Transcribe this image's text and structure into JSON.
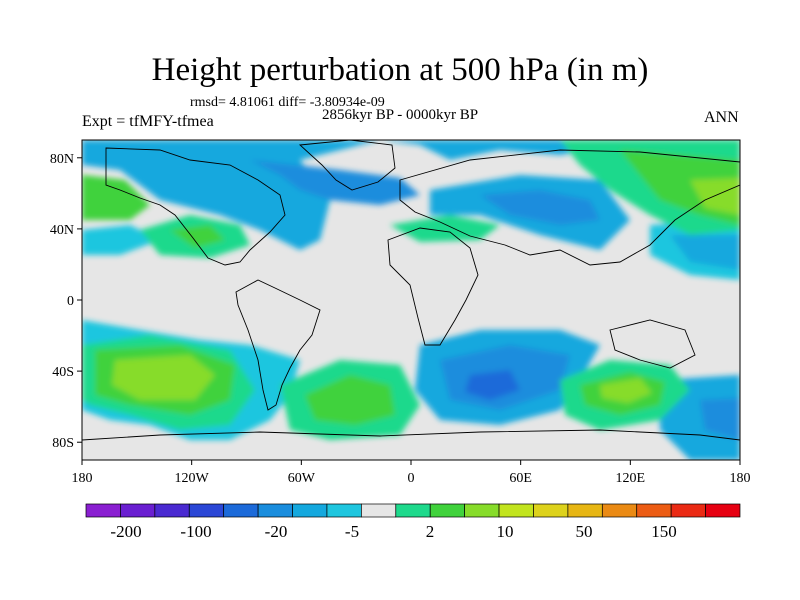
{
  "header": {
    "title": "Height perturbation at 500 hPa (in m)",
    "stats": "rmsd= 4.81061 diff= -3.80934e-09",
    "period": "2856kyr BP - 0000kyr BP",
    "experiment": "Expt = tfMFY-tfmea",
    "season": "ANN"
  },
  "map": {
    "projection": "cylindrical equidistant",
    "lon_range": [
      -180,
      180
    ],
    "lat_range": [
      -90,
      90
    ],
    "x_ticks": [
      "180",
      "120W",
      "60W",
      "0",
      "60E",
      "120E",
      "180"
    ],
    "y_ticks": [
      "80N",
      "40N",
      "0",
      "40S",
      "80S"
    ],
    "background_color": "#e6e6e6",
    "coastline_color": "#000000"
  },
  "colorbar": {
    "labels": [
      "-200",
      "-100",
      "-20",
      "-5",
      "2",
      "10",
      "50",
      "150"
    ],
    "colors": [
      "#8a1fd1",
      "#6a1fd1",
      "#4a2ad1",
      "#2b47d6",
      "#1c6ad9",
      "#1a8ddd",
      "#14a8de",
      "#1fc6df",
      "#e6e6e6",
      "#1ed98c",
      "#40d23c",
      "#87dc2a",
      "#c2e41e",
      "#ddd21c",
      "#e7b614",
      "#ea8a14",
      "#ec5c14",
      "#ea2a14",
      "#e60012"
    ]
  }
}
